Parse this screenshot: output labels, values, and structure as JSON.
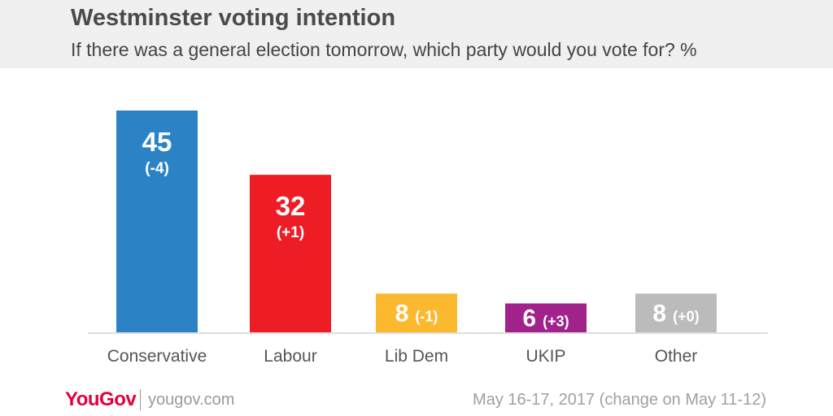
{
  "header": {
    "title": "Westminster voting intention",
    "subtitle": "If there was a general election tomorrow, which party would you vote for? %"
  },
  "chart_data": {
    "type": "bar",
    "title": "Westminster voting intention",
    "subtitle": "If there was a general election tomorrow, which party would you vote for? %",
    "categories": [
      "Conservative",
      "Labour",
      "Lib Dem",
      "UKIP",
      "Other"
    ],
    "values": [
      45,
      32,
      8,
      6,
      8
    ],
    "changes": [
      "(-4)",
      "(+1)",
      "(-1)",
      "(+3)",
      "(+0)"
    ],
    "colors": [
      "#2b83c6",
      "#ee1c24",
      "#fdb92e",
      "#a1228b",
      "#bbbbbb"
    ],
    "ylim": [
      0,
      45
    ],
    "grid": false,
    "legend": "none"
  },
  "footer": {
    "logo": "YouGov",
    "site": "yougov.com",
    "note": "May 16-17, 2017 (change on May 11-12)"
  }
}
